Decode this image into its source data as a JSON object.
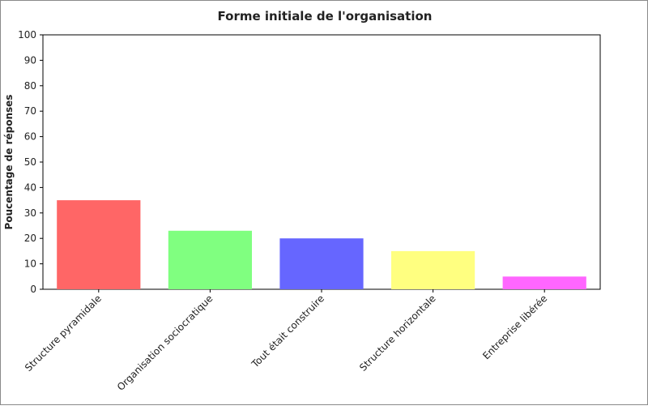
{
  "chart_data": {
    "type": "bar",
    "title": "Forme initiale de l'organisation",
    "xlabel": "",
    "ylabel": "Poucentage de réponses",
    "ylim": [
      0,
      100
    ],
    "yticks": [
      0,
      10,
      20,
      30,
      40,
      50,
      60,
      70,
      80,
      90,
      100
    ],
    "categories": [
      "Structure pyramidale",
      "Organisation sociocratique",
      "Tout était construire",
      "Structure horizontale",
      "Entreprise libérée"
    ],
    "values": [
      35,
      23,
      20,
      15,
      5
    ],
    "colors": [
      "#ff6666",
      "#80ff80",
      "#6666ff",
      "#ffff80",
      "#ff66ff"
    ],
    "grid": false,
    "legend": "none"
  }
}
